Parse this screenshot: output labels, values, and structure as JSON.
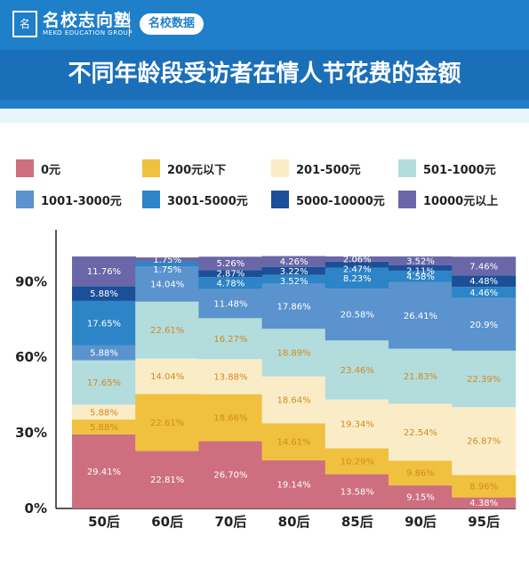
{
  "header": {
    "logo_glyph": "名",
    "brand_name": "名校志向塾",
    "brand_sub": "MEKO EDUCATION GROUP",
    "tag": "名校数据",
    "title": "不同年龄段受访者在情人节花费的金额"
  },
  "chart_data": {
    "type": "bar",
    "stacked": true,
    "categories": [
      "50后",
      "60后",
      "70后",
      "80后",
      "85后",
      "90后",
      "95后"
    ],
    "ylim": [
      0,
      100
    ],
    "yticks": [
      "0%",
      "30%",
      "60%",
      "90%"
    ],
    "ytick_values": [
      0,
      30,
      60,
      90
    ],
    "legend_position": "top",
    "series": [
      {
        "name": "0元",
        "color": "#cd6f7f",
        "values": [
          29.41,
          22.81,
          26.7,
          19.14,
          13.58,
          9.15,
          4.38
        ],
        "labels": [
          "29.41%",
          "22.81%",
          "26.70%",
          "19.14%",
          "13.58%",
          "9.15%",
          "4.38%"
        ]
      },
      {
        "name": "200元以下",
        "color": "#f0c13f",
        "values": [
          5.88,
          22.61,
          18.66,
          14.61,
          10.29,
          9.86,
          8.96
        ],
        "labels": [
          "5.88%",
          "22.61%",
          "18.66%",
          "14.61%",
          "10.29%",
          "9.86%",
          "8.96%"
        ]
      },
      {
        "name": "201-500元",
        "color": "#fbecc8",
        "values": [
          5.88,
          14.04,
          13.88,
          18.64,
          19.34,
          22.54,
          26.87
        ],
        "labels": [
          "5.88%",
          "14.04%",
          "13.88%",
          "18.64%",
          "19.34%",
          "22.54%",
          "26.87%"
        ]
      },
      {
        "name": "501-1000元",
        "color": "#b3dcdc",
        "values": [
          17.65,
          22.61,
          16.27,
          18.89,
          23.46,
          21.83,
          22.39
        ],
        "labels": [
          "17.65%",
          "22.61%",
          "16.27%",
          "18.89%",
          "23.46%",
          "21.83%",
          "22.39%"
        ]
      },
      {
        "name": "1001-3000元",
        "color": "#5a93cd",
        "values": [
          5.88,
          14.04,
          11.48,
          17.86,
          20.58,
          26.41,
          20.9
        ],
        "labels": [
          "5.88%",
          "14.04%",
          "11.48%",
          "17.86%",
          "20.58%",
          "26.41%",
          "20.9%"
        ]
      },
      {
        "name": "3001-5000元",
        "color": "#2d84c6",
        "values": [
          17.65,
          1.75,
          4.78,
          3.52,
          8.23,
          4.58,
          4.46
        ],
        "labels": [
          "17.65%",
          "1.75%",
          "4.78%",
          "3.52%",
          "8.23%",
          "4.58%",
          "4.46%"
        ]
      },
      {
        "name": "5000-10000元",
        "color": "#1b4f97",
        "values": [
          5.88,
          0,
          2.87,
          3.22,
          2.47,
          2.11,
          4.48
        ],
        "labels": [
          "5.88%",
          "",
          "2.87%",
          "3.22%",
          "2.47%",
          "2.11%",
          "4.48%"
        ]
      },
      {
        "name": "10000元以上",
        "color": "#6a67a8",
        "values": [
          11.76,
          1.75,
          5.26,
          4.26,
          2.06,
          3.52,
          7.46
        ],
        "labels": [
          "11.76%",
          "1.75%",
          "5.26%",
          "4.26%",
          "2.06%",
          "3.52%",
          "7.46%"
        ]
      }
    ]
  }
}
